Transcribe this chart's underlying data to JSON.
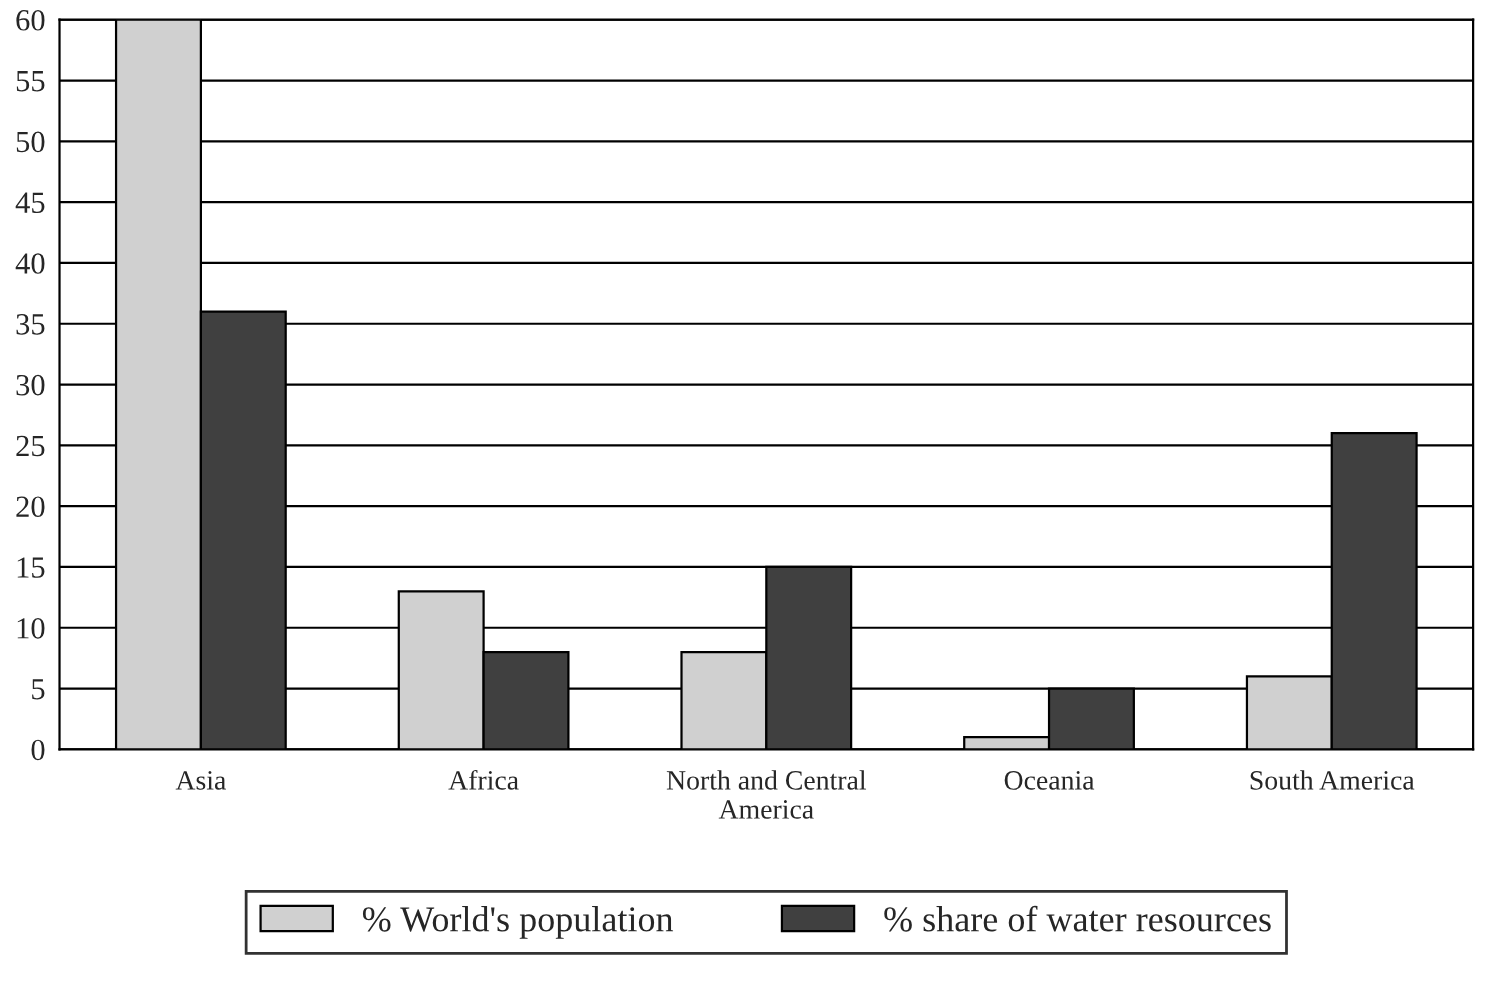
{
  "chart_data": {
    "type": "bar",
    "categories": [
      "Asia",
      "Africa",
      "North and Central\nAmerica",
      "Oceania",
      "South America"
    ],
    "series": [
      {
        "name": "% World's population",
        "color": "#d0d0d0",
        "values": [
          60,
          13,
          8,
          1,
          6
        ]
      },
      {
        "name": "% share of water resources",
        "color": "#404040",
        "values": [
          36,
          8,
          15,
          5,
          26
        ]
      }
    ],
    "ylim": [
      0,
      60
    ],
    "yticks": [
      0,
      5,
      10,
      15,
      20,
      25,
      30,
      35,
      40,
      45,
      50,
      55,
      60
    ],
    "grid": "y",
    "legend": "bottom"
  }
}
